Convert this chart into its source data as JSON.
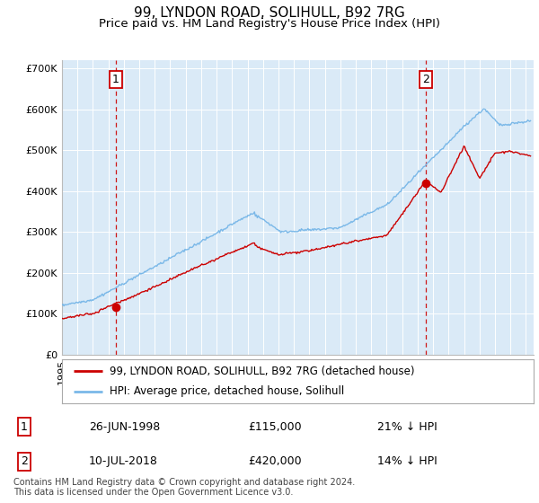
{
  "title": "99, LYNDON ROAD, SOLIHULL, B92 7RG",
  "subtitle": "Price paid vs. HM Land Registry's House Price Index (HPI)",
  "ylim": [
    0,
    720000
  ],
  "yticks": [
    0,
    100000,
    200000,
    300000,
    400000,
    500000,
    600000,
    700000
  ],
  "ytick_labels": [
    "£0",
    "£100K",
    "£200K",
    "£300K",
    "£400K",
    "£500K",
    "£600K",
    "£700K"
  ],
  "background_color": "#daeaf7",
  "hpi_color": "#7ab8e8",
  "price_color": "#cc0000",
  "sale1_date": 1998.49,
  "sale1_price": 115000,
  "sale1_label": "1",
  "sale2_date": 2018.53,
  "sale2_price": 420000,
  "sale2_label": "2",
  "legend_entries": [
    "99, LYNDON ROAD, SOLIHULL, B92 7RG (detached house)",
    "HPI: Average price, detached house, Solihull"
  ],
  "table_rows": [
    [
      "1",
      "26-JUN-1998",
      "£115,000",
      "21% ↓ HPI"
    ],
    [
      "2",
      "10-JUL-2018",
      "£420,000",
      "14% ↓ HPI"
    ]
  ],
  "footnote": "Contains HM Land Registry data © Crown copyright and database right 2024.\nThis data is licensed under the Open Government Licence v3.0.",
  "title_fontsize": 11,
  "subtitle_fontsize": 9.5,
  "tick_fontsize": 8,
  "xstart": 1995,
  "xend": 2025.5
}
